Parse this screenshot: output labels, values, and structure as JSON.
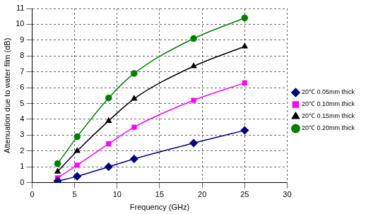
{
  "chart_data": {
    "type": "line",
    "x_label": "Frequency (GHz)",
    "y_label": "Attenuation due to water film (dB)",
    "x": [
      3,
      5.3,
      9,
      12,
      19,
      25
    ],
    "series": [
      {
        "name": "20℃ 0.05mm thick",
        "color": "#000080",
        "marker": "diamond",
        "line_style": "solid",
        "values": [
          0.1,
          0.4,
          1.0,
          1.5,
          2.5,
          3.3
        ]
      },
      {
        "name": "20℃ 0.10mm thick",
        "color": "#ff00ff",
        "marker": "square",
        "line_style": "solid",
        "values": [
          0.3,
          1.1,
          2.45,
          3.5,
          5.2,
          6.3
        ]
      },
      {
        "name": "20℃ 0.15mm thick",
        "color": "#000000",
        "marker": "triangle",
        "line_style": "solid",
        "values": [
          0.7,
          2.0,
          3.9,
          5.3,
          7.35,
          8.6
        ]
      },
      {
        "name": "20℃ 0.20mm thick",
        "color": "#008000",
        "marker": "circle",
        "line_style": "solid",
        "values": [
          1.2,
          2.9,
          5.35,
          6.9,
          9.1,
          10.4
        ]
      }
    ],
    "xlim": [
      0,
      30
    ],
    "xticks": [
      0,
      5,
      10,
      15,
      20,
      25,
      30
    ],
    "ylim": [
      0,
      11
    ],
    "yticks": [
      0,
      1,
      2,
      3,
      4,
      5,
      6,
      7,
      8,
      9,
      10,
      11
    ],
    "grid": true,
    "legend": "right"
  }
}
